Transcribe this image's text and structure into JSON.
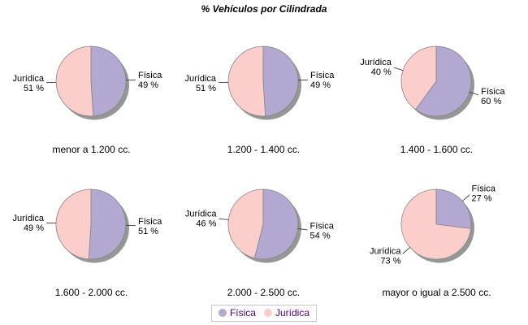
{
  "title": "% Vehículos por Cilindrada",
  "legend": {
    "items": [
      {
        "label": "Física",
        "color": "#B2A8D1"
      },
      {
        "label": "Jurídica",
        "color": "#FBCDCB"
      }
    ]
  },
  "colors": {
    "fisica": "#B2A8D1",
    "juridica": "#FBCDCB",
    "shadow": "#969696",
    "outline": "#858585",
    "leader_line": "#3A3A3A",
    "label_text": "#000000",
    "legend_text": "#4B0082",
    "legend_border": "#C4C4CE",
    "background": "#FFFFFF"
  },
  "chart_data": [
    {
      "type": "pie",
      "title": "menor a 1.200 cc.",
      "labels": [
        "Física",
        "Jurídica"
      ],
      "values": [
        49,
        51
      ],
      "value_labels": [
        "49 %",
        "51 %"
      ],
      "legend_position": "bottom"
    },
    {
      "type": "pie",
      "title": "1.200 - 1.400 cc.",
      "labels": [
        "Física",
        "Jurídica"
      ],
      "values": [
        49,
        51
      ],
      "value_labels": [
        "49 %",
        "51 %"
      ],
      "legend_position": "bottom"
    },
    {
      "type": "pie",
      "title": "1.400 - 1.600 cc.",
      "labels": [
        "Física",
        "Jurídica"
      ],
      "values": [
        60,
        40
      ],
      "value_labels": [
        "60 %",
        "40 %"
      ],
      "legend_position": "bottom"
    },
    {
      "type": "pie",
      "title": "1.600 - 2.000 cc.",
      "labels": [
        "Física",
        "Jurídica"
      ],
      "values": [
        51,
        49
      ],
      "value_labels": [
        "51 %",
        "49 %"
      ],
      "legend_position": "bottom"
    },
    {
      "type": "pie",
      "title": "2.000 - 2.500 cc.",
      "labels": [
        "Física",
        "Jurídica"
      ],
      "values": [
        54,
        46
      ],
      "value_labels": [
        "54 %",
        "46 %"
      ],
      "legend_position": "bottom"
    },
    {
      "type": "pie",
      "title": "mayor o igual a 2.500 cc.",
      "labels": [
        "Física",
        "Jurídica"
      ],
      "values": [
        27,
        73
      ],
      "value_labels": [
        "27 %",
        "73 %"
      ],
      "legend_position": "bottom"
    }
  ]
}
